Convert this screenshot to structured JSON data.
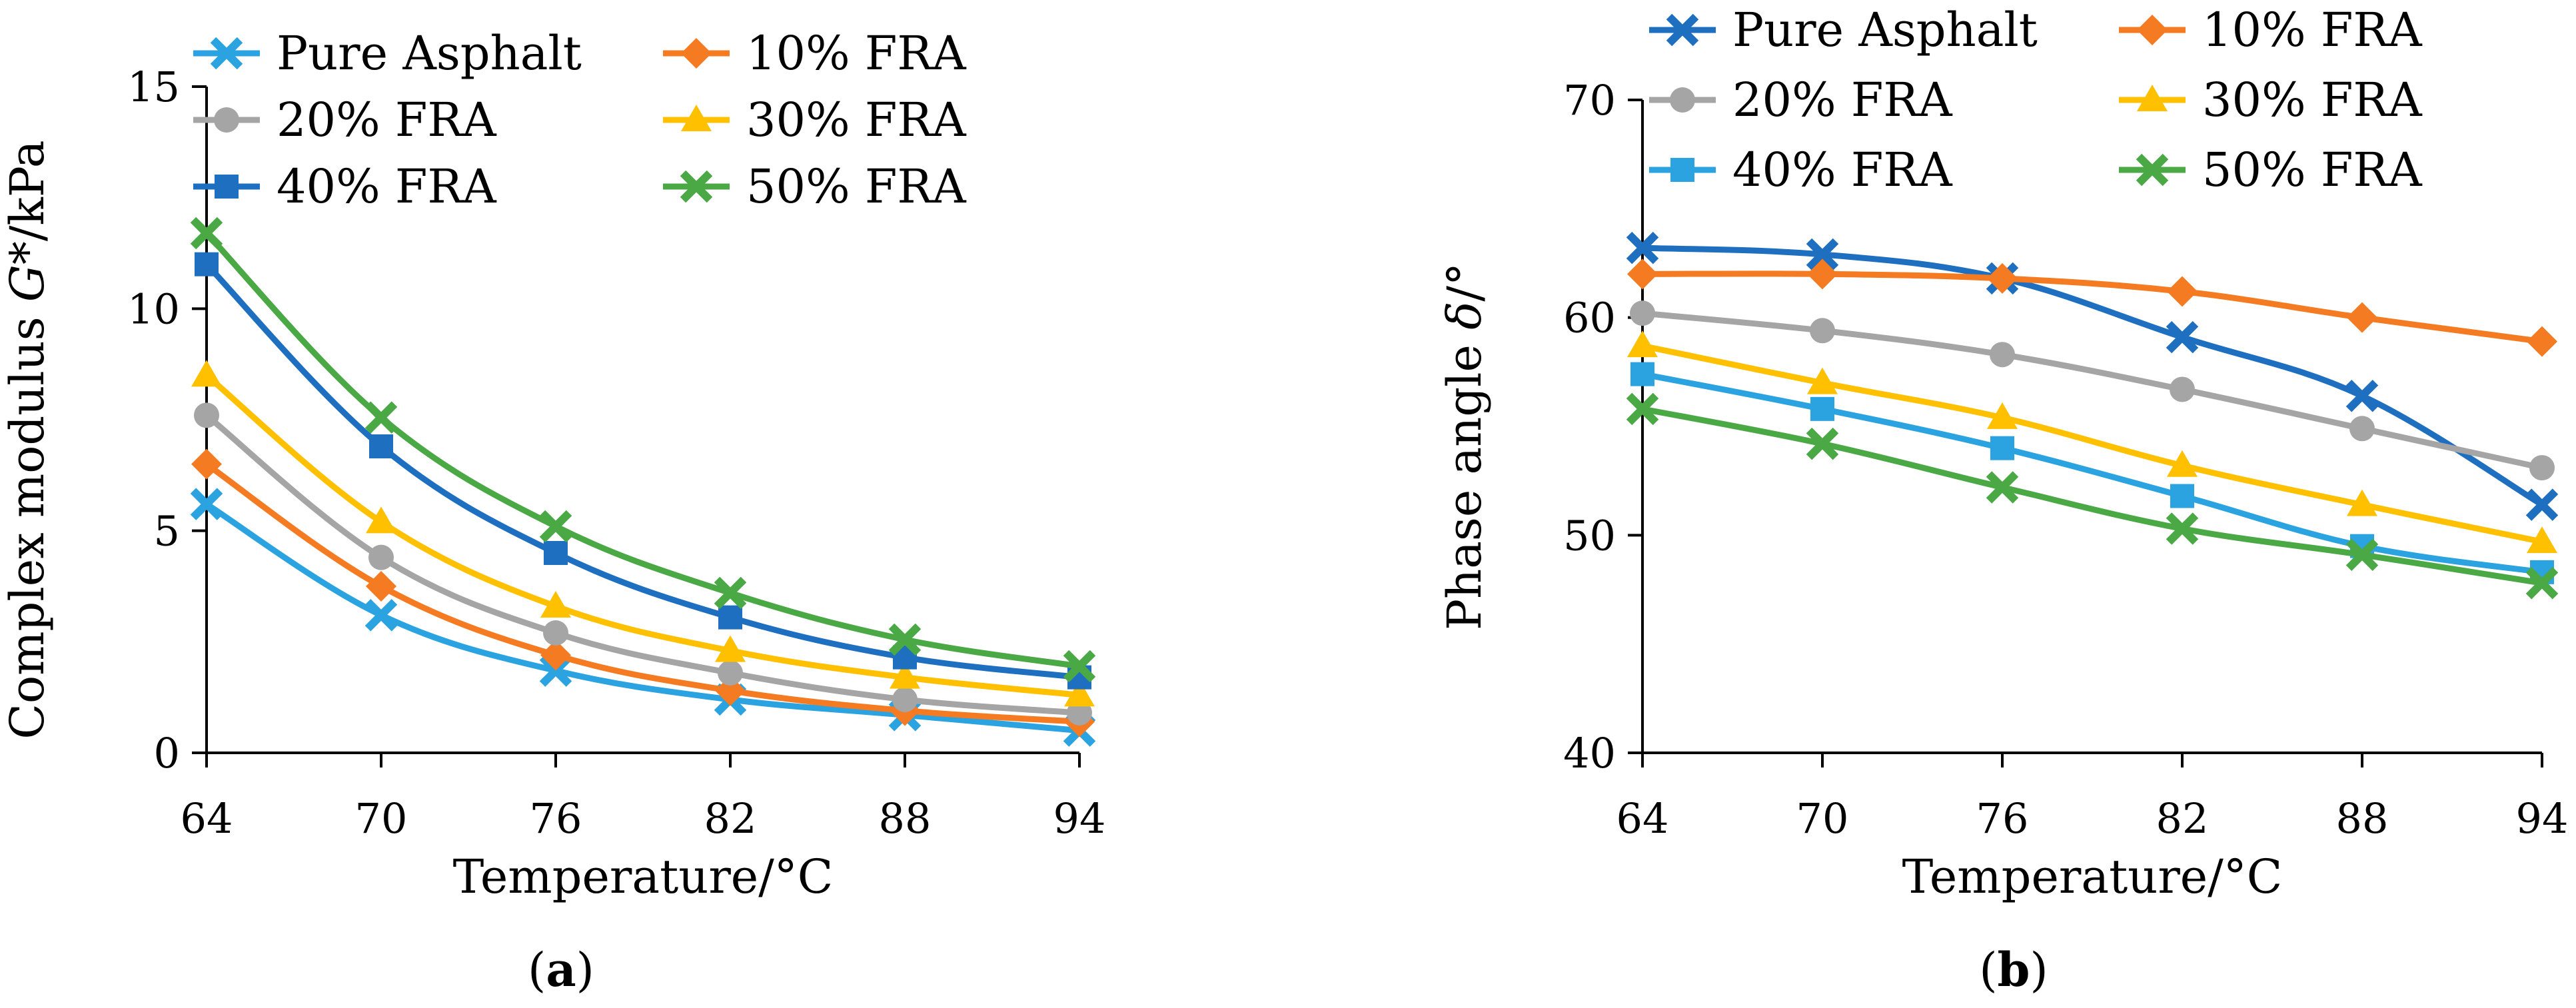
{
  "panels": [
    {
      "panel_label": "a",
      "chart_data": {
        "type": "line",
        "x": [
          64,
          70,
          76,
          82,
          88,
          94
        ],
        "xlabel": "Temperature/°C",
        "ylabel_prefix": "Complex modulus ",
        "ylabel_italic": "G*",
        "ylabel_suffix": "/kPa",
        "ylim": [
          0,
          15
        ],
        "yticks": [
          0,
          5,
          10,
          15
        ],
        "grid": false,
        "legend": "top",
        "series": [
          {
            "name": "Pure Asphalt",
            "color": "#2aa3e0",
            "marker": "x-marker",
            "values": [
              5.6,
              3.1,
              1.85,
              1.2,
              0.85,
              0.5
            ]
          },
          {
            "name": "10% FRA",
            "color": "#f47b22",
            "marker": "diamond-marker",
            "values": [
              6.5,
              3.75,
              2.2,
              1.4,
              0.95,
              0.7
            ]
          },
          {
            "name": "20% FRA",
            "color": "#a5a5a5",
            "marker": "circle-marker",
            "values": [
              7.6,
              4.4,
              2.7,
              1.8,
              1.2,
              0.9
            ]
          },
          {
            "name": "30% FRA",
            "color": "#ffc000",
            "marker": "triangle-marker",
            "values": [
              8.5,
              5.2,
              3.3,
              2.3,
              1.7,
              1.3
            ]
          },
          {
            "name": "40% FRA",
            "color": "#1f6fc0",
            "marker": "square-marker",
            "values": [
              11.0,
              6.9,
              4.5,
              3.05,
              2.15,
              1.7
            ]
          },
          {
            "name": "50% FRA",
            "color": "#4aa845",
            "marker": "x-marker",
            "values": [
              11.7,
              7.55,
              5.1,
              3.6,
              2.55,
              1.95
            ]
          }
        ]
      }
    },
    {
      "panel_label": "b",
      "chart_data": {
        "type": "line",
        "x": [
          64,
          70,
          76,
          82,
          88,
          94
        ],
        "xlabel": "Temperature/°C",
        "ylabel_prefix": "Phase angle ",
        "ylabel_italic": "δ",
        "ylabel_suffix": "/°",
        "ylim": [
          40,
          70
        ],
        "yticks": [
          40,
          50,
          60,
          70
        ],
        "grid": false,
        "legend": "top",
        "series": [
          {
            "name": "Pure Asphalt",
            "color": "#1f6fc0",
            "marker": "x-marker",
            "values": [
              63.2,
              62.9,
              61.8,
              59.1,
              56.4,
              51.4
            ]
          },
          {
            "name": "10% FRA",
            "color": "#f47b22",
            "marker": "diamond-marker",
            "values": [
              62.0,
              62.0,
              61.8,
              61.2,
              60.0,
              58.9
            ]
          },
          {
            "name": "20% FRA",
            "color": "#a5a5a5",
            "marker": "circle-marker",
            "values": [
              60.2,
              59.4,
              58.3,
              56.7,
              54.9,
              53.1
            ]
          },
          {
            "name": "30% FRA",
            "color": "#ffc000",
            "marker": "triangle-marker",
            "values": [
              58.7,
              57.0,
              55.4,
              53.2,
              51.4,
              49.7
            ]
          },
          {
            "name": "40% FRA",
            "color": "#2aa3e0",
            "marker": "square-marker",
            "values": [
              57.4,
              55.8,
              54.0,
              51.8,
              49.5,
              48.3
            ]
          },
          {
            "name": "50% FRA",
            "color": "#4aa845",
            "marker": "x-marker",
            "values": [
              55.8,
              54.2,
              52.2,
              50.3,
              49.1,
              47.8
            ]
          }
        ]
      }
    }
  ]
}
